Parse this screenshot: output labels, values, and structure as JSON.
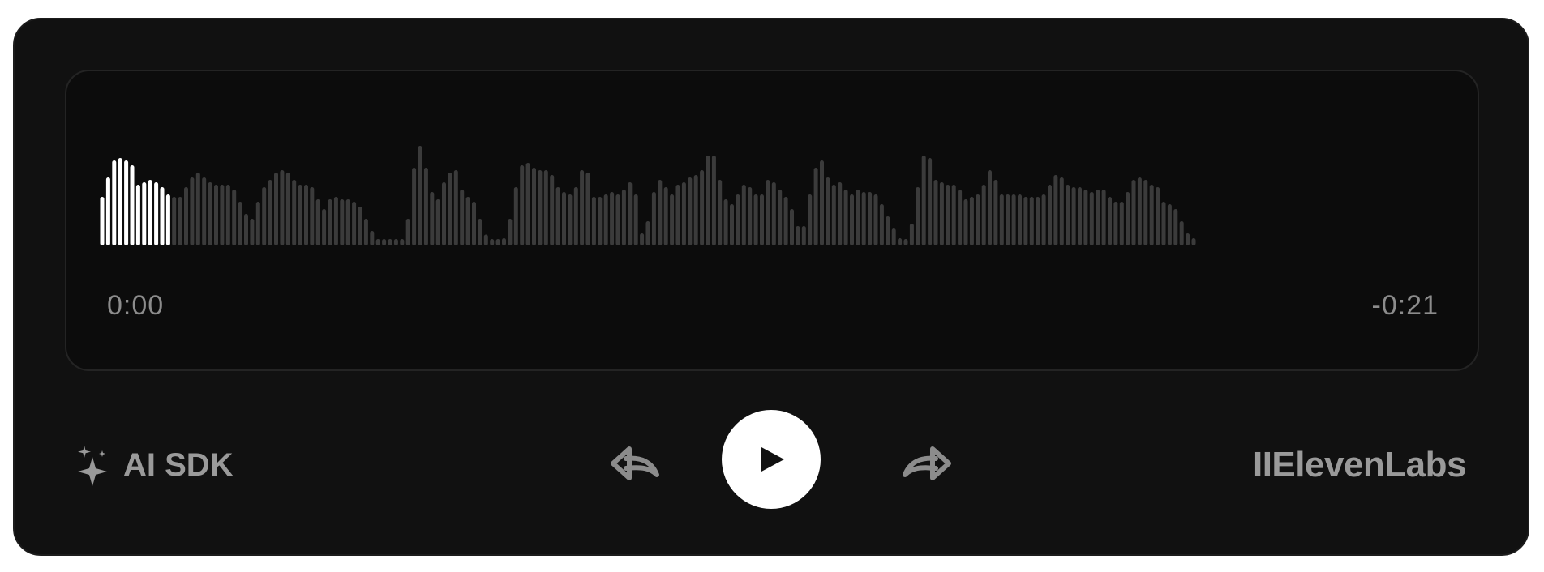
{
  "player": {
    "time_current": "0:00",
    "time_remaining": "-0:21",
    "progress": 0.03,
    "colors": {
      "card_bg": "#111111",
      "panel_bg": "#0c0c0c",
      "bar_played": "#ffffff",
      "bar_unplayed": "#3b3b3b",
      "text_muted": "#8c8c8c"
    },
    "waveform_levels": [
      0.4,
      0.56,
      0.7,
      0.72,
      0.7,
      0.66,
      0.5,
      0.52,
      0.54,
      0.52,
      0.48,
      0.42,
      0.4,
      0.4,
      0.48,
      0.56,
      0.6,
      0.56,
      0.52,
      0.5,
      0.5,
      0.5,
      0.46,
      0.36,
      0.26,
      0.22,
      0.36,
      0.48,
      0.54,
      0.6,
      0.62,
      0.6,
      0.54,
      0.5,
      0.5,
      0.48,
      0.38,
      0.3,
      0.38,
      0.4,
      0.38,
      0.38,
      0.36,
      0.32,
      0.22,
      0.12,
      0.05,
      0.05,
      0.05,
      0.05,
      0.05,
      0.22,
      0.64,
      0.82,
      0.64,
      0.44,
      0.38,
      0.52,
      0.6,
      0.62,
      0.46,
      0.4,
      0.36,
      0.22,
      0.09,
      0.05,
      0.05,
      0.06,
      0.22,
      0.48,
      0.66,
      0.68,
      0.64,
      0.62,
      0.62,
      0.58,
      0.48,
      0.44,
      0.42,
      0.48,
      0.62,
      0.6,
      0.4,
      0.4,
      0.42,
      0.44,
      0.42,
      0.46,
      0.52,
      0.42,
      0.1,
      0.2,
      0.44,
      0.54,
      0.48,
      0.42,
      0.5,
      0.52,
      0.56,
      0.58,
      0.62,
      0.74,
      0.74,
      0.54,
      0.38,
      0.34,
      0.42,
      0.5,
      0.48,
      0.42,
      0.42,
      0.54,
      0.52,
      0.46,
      0.4,
      0.3,
      0.16,
      0.16,
      0.42,
      0.64,
      0.7,
      0.56,
      0.5,
      0.52,
      0.46,
      0.42,
      0.46,
      0.44,
      0.44,
      0.42,
      0.34,
      0.24,
      0.14,
      0.06,
      0.05,
      0.18,
      0.48,
      0.74,
      0.72,
      0.54,
      0.52,
      0.5,
      0.5,
      0.46,
      0.38,
      0.4,
      0.42,
      0.5,
      0.62,
      0.54,
      0.42,
      0.42,
      0.42,
      0.42,
      0.4,
      0.4,
      0.4,
      0.42,
      0.5,
      0.58,
      0.56,
      0.5,
      0.48,
      0.48,
      0.46,
      0.44,
      0.46,
      0.46,
      0.4,
      0.36,
      0.36,
      0.44,
      0.54,
      0.56,
      0.54,
      0.5,
      0.48,
      0.36,
      0.34,
      0.3,
      0.2,
      0.1,
      0.06
    ]
  },
  "controls": {
    "rewind_icon": "rewind-icon",
    "play_icon": "play-icon",
    "forward_icon": "forward-icon"
  },
  "brand": {
    "left_label": "AI SDK",
    "left_icon": "sparkles-icon",
    "right_logo": "IIElevenLabs"
  }
}
